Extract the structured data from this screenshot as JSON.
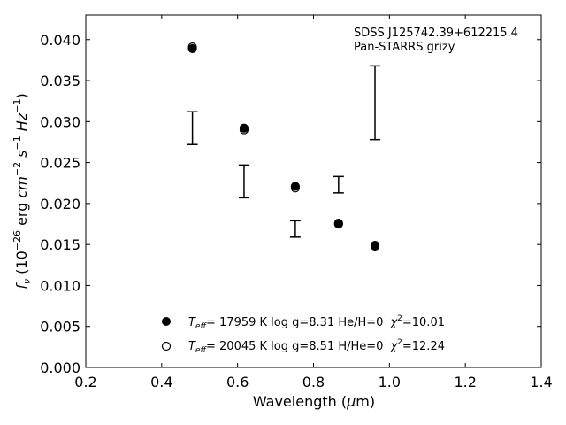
{
  "chart_data": {
    "type": "scatter",
    "annotation": [
      "SDSS J125742.39+612215.4",
      "Pan-STARRS grizy"
    ],
    "xlabel": "Wavelength (μm)",
    "ylabel": "f_ν (10^-26 erg cm^-2 s^-1 Hz^-1)",
    "xlim": [
      0.2,
      1.4
    ],
    "ylim": [
      0.0,
      0.043
    ],
    "xticks": [
      "0.2",
      "0.4",
      "0.6",
      "0.8",
      "1.0",
      "1.2",
      "1.4"
    ],
    "yticks": [
      "0.000",
      "0.005",
      "0.010",
      "0.015",
      "0.020",
      "0.025",
      "0.030",
      "0.035",
      "0.040"
    ],
    "grid": false,
    "legend_position": "lower-center",
    "observed": {
      "x": [
        0.481,
        0.617,
        0.752,
        0.866,
        0.962
      ],
      "y": [
        0.0292,
        0.0227,
        0.0169,
        0.0223,
        0.0323
      ],
      "yerr": [
        0.002,
        0.002,
        0.001,
        0.001,
        0.0045
      ]
    },
    "series": [
      {
        "name": "T_eff= 17959 K  log g=8.31  He/H=0  χ²=10.01",
        "marker": "filled-circle",
        "x": [
          0.481,
          0.617,
          0.752,
          0.866,
          0.962
        ],
        "y": [
          0.0389,
          0.0292,
          0.0221,
          0.0176,
          0.0149
        ]
      },
      {
        "name": "T_eff= 20045 K  log g=8.51  H/He=0  χ²=12.24",
        "marker": "open-circle",
        "x": [
          0.481,
          0.617,
          0.752,
          0.866,
          0.962
        ],
        "y": [
          0.0391,
          0.029,
          0.0219,
          0.0175,
          0.0148
        ]
      }
    ],
    "legend": {
      "entries": [
        {
          "teff_value": "= 17959 K  log g=8.31  He/H=0",
          "chi2_value": "=10.01"
        },
        {
          "teff_value": "= 20045 K  log g=8.51  H/He=0",
          "chi2_value": "=12.24"
        }
      ]
    },
    "colors": {
      "marker": "#000000",
      "background": "#ffffff"
    }
  }
}
